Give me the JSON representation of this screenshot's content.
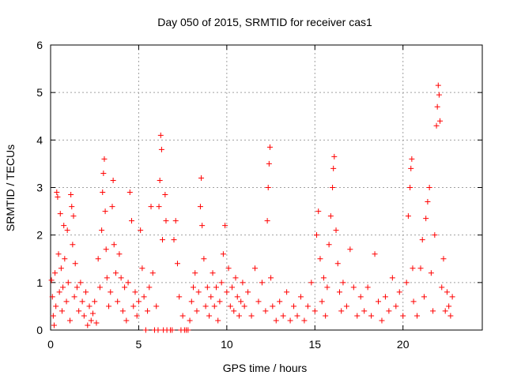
{
  "chart_data": {
    "type": "scatter",
    "title": "Day 050 of 2015, SRMTID for receiver cas1",
    "xlabel": "GPS time / hours",
    "ylabel": "SRMTID / TECUs",
    "xlim": [
      0,
      24.5
    ],
    "ylim": [
      0,
      6
    ],
    "xticks": [
      0,
      5,
      10,
      15,
      20
    ],
    "yticks": [
      0,
      1,
      2,
      3,
      4,
      5,
      6
    ],
    "grid": true,
    "marker": "+",
    "color": "#ff0000",
    "series": [
      {
        "name": "SRMTID",
        "points": [
          [
            0.05,
            1.05
          ],
          [
            0.1,
            0.7
          ],
          [
            0.15,
            0.3
          ],
          [
            0.2,
            0.1
          ],
          [
            0.25,
            1.2
          ],
          [
            0.3,
            0.5
          ],
          [
            0.35,
            2.9
          ],
          [
            0.4,
            2.8
          ],
          [
            0.45,
            1.6
          ],
          [
            0.5,
            0.8
          ],
          [
            0.55,
            2.45
          ],
          [
            0.6,
            1.3
          ],
          [
            0.65,
            0.4
          ],
          [
            0.7,
            0.9
          ],
          [
            0.75,
            2.2
          ],
          [
            0.8,
            1.5
          ],
          [
            0.9,
            0.6
          ],
          [
            0.95,
            2.1
          ],
          [
            1.0,
            1.0
          ],
          [
            1.1,
            0.2
          ],
          [
            1.15,
            2.85
          ],
          [
            1.2,
            2.6
          ],
          [
            1.25,
            1.8
          ],
          [
            1.3,
            2.4
          ],
          [
            1.35,
            0.7
          ],
          [
            1.4,
            1.4
          ],
          [
            1.5,
            0.9
          ],
          [
            1.6,
            0.4
          ],
          [
            1.7,
            1.0
          ],
          [
            1.8,
            0.6
          ],
          [
            1.9,
            0.3
          ],
          [
            2.0,
            0.8
          ],
          [
            2.1,
            0.1
          ],
          [
            2.2,
            0.5
          ],
          [
            2.3,
            0.2
          ],
          [
            2.4,
            0.35
          ],
          [
            2.5,
            0.6
          ],
          [
            2.6,
            0.15
          ],
          [
            2.7,
            1.5
          ],
          [
            2.8,
            0.9
          ],
          [
            2.9,
            2.1
          ],
          [
            2.95,
            2.9
          ],
          [
            3.0,
            3.3
          ],
          [
            3.05,
            3.6
          ],
          [
            3.1,
            2.5
          ],
          [
            3.15,
            1.7
          ],
          [
            3.2,
            1.1
          ],
          [
            3.3,
            0.5
          ],
          [
            3.4,
            0.8
          ],
          [
            3.5,
            2.6
          ],
          [
            3.55,
            3.15
          ],
          [
            3.6,
            1.8
          ],
          [
            3.7,
            1.2
          ],
          [
            3.8,
            0.6
          ],
          [
            3.9,
            1.6
          ],
          [
            4.0,
            1.1
          ],
          [
            4.1,
            0.4
          ],
          [
            4.2,
            0.9
          ],
          [
            4.3,
            0.2
          ],
          [
            4.4,
            1.0
          ],
          [
            4.5,
            2.9
          ],
          [
            4.6,
            2.3
          ],
          [
            4.7,
            0.5
          ],
          [
            4.8,
            0.8
          ],
          [
            4.9,
            0.3
          ],
          [
            5.0,
            0.6
          ],
          [
            5.1,
            2.1
          ],
          [
            5.2,
            1.3
          ],
          [
            5.3,
            0.7
          ],
          [
            5.4,
            0.0
          ],
          [
            5.5,
            0.4
          ],
          [
            5.6,
            0.9
          ],
          [
            5.7,
            2.6
          ],
          [
            5.8,
            1.2
          ],
          [
            5.9,
            0.0
          ],
          [
            6.0,
            0.5
          ],
          [
            6.1,
            0.0
          ],
          [
            6.15,
            2.6
          ],
          [
            6.2,
            3.15
          ],
          [
            6.25,
            4.1
          ],
          [
            6.3,
            3.8
          ],
          [
            6.35,
            1.9
          ],
          [
            6.4,
            0.0
          ],
          [
            6.5,
            2.85
          ],
          [
            6.55,
            2.3
          ],
          [
            6.6,
            0.0
          ],
          [
            6.8,
            0.0
          ],
          [
            6.9,
            0.0
          ],
          [
            7.0,
            1.9
          ],
          [
            7.1,
            2.3
          ],
          [
            7.2,
            1.4
          ],
          [
            7.3,
            0.7
          ],
          [
            7.4,
            0.0
          ],
          [
            7.5,
            0.3
          ],
          [
            7.6,
            0.0
          ],
          [
            7.7,
            0.0
          ],
          [
            7.8,
            0.0
          ],
          [
            7.9,
            0.2
          ],
          [
            8.0,
            0.6
          ],
          [
            8.1,
            0.9
          ],
          [
            8.2,
            1.2
          ],
          [
            8.3,
            0.4
          ],
          [
            8.4,
            0.8
          ],
          [
            8.5,
            2.6
          ],
          [
            8.55,
            3.2
          ],
          [
            8.6,
            2.2
          ],
          [
            8.7,
            1.5
          ],
          [
            8.8,
            0.5
          ],
          [
            8.9,
            0.9
          ],
          [
            9.0,
            0.3
          ],
          [
            9.1,
            0.7
          ],
          [
            9.2,
            1.2
          ],
          [
            9.3,
            0.5
          ],
          [
            9.4,
            0.9
          ],
          [
            9.5,
            0.2
          ],
          [
            9.6,
            0.6
          ],
          [
            9.7,
            1.0
          ],
          [
            9.8,
            1.6
          ],
          [
            9.9,
            2.2
          ],
          [
            10.0,
            0.8
          ],
          [
            10.1,
            1.3
          ],
          [
            10.2,
            0.5
          ],
          [
            10.3,
            0.9
          ],
          [
            10.4,
            0.4
          ],
          [
            10.5,
            1.1
          ],
          [
            10.6,
            0.7
          ],
          [
            10.7,
            0.3
          ],
          [
            10.8,
            0.6
          ],
          [
            10.9,
            1.0
          ],
          [
            11.0,
            0.5
          ],
          [
            11.2,
            0.8
          ],
          [
            11.4,
            0.3
          ],
          [
            11.6,
            1.3
          ],
          [
            11.8,
            0.6
          ],
          [
            12.0,
            1.0
          ],
          [
            12.2,
            0.4
          ],
          [
            12.3,
            2.3
          ],
          [
            12.35,
            3.0
          ],
          [
            12.4,
            3.5
          ],
          [
            12.45,
            3.85
          ],
          [
            12.5,
            1.1
          ],
          [
            12.6,
            0.5
          ],
          [
            12.8,
            0.2
          ],
          [
            13.0,
            0.6
          ],
          [
            13.2,
            0.3
          ],
          [
            13.4,
            0.8
          ],
          [
            13.6,
            0.2
          ],
          [
            13.8,
            0.5
          ],
          [
            14.0,
            0.3
          ],
          [
            14.2,
            0.7
          ],
          [
            14.4,
            0.2
          ],
          [
            14.6,
            0.5
          ],
          [
            14.8,
            1.0
          ],
          [
            15.0,
            0.4
          ],
          [
            15.1,
            2.0
          ],
          [
            15.2,
            2.5
          ],
          [
            15.3,
            1.5
          ],
          [
            15.4,
            0.6
          ],
          [
            15.5,
            1.1
          ],
          [
            15.6,
            0.3
          ],
          [
            15.7,
            0.9
          ],
          [
            15.8,
            1.8
          ],
          [
            15.9,
            2.4
          ],
          [
            16.0,
            3.0
          ],
          [
            16.05,
            3.4
          ],
          [
            16.1,
            3.65
          ],
          [
            16.2,
            2.1
          ],
          [
            16.3,
            1.4
          ],
          [
            16.4,
            0.8
          ],
          [
            16.5,
            0.4
          ],
          [
            16.6,
            1.0
          ],
          [
            16.8,
            0.5
          ],
          [
            17.0,
            1.7
          ],
          [
            17.2,
            0.9
          ],
          [
            17.4,
            0.3
          ],
          [
            17.6,
            0.7
          ],
          [
            17.8,
            0.4
          ],
          [
            18.0,
            0.9
          ],
          [
            18.2,
            0.3
          ],
          [
            18.4,
            1.6
          ],
          [
            18.6,
            0.6
          ],
          [
            18.8,
            0.2
          ],
          [
            19.0,
            0.7
          ],
          [
            19.2,
            0.4
          ],
          [
            19.4,
            1.1
          ],
          [
            19.6,
            0.5
          ],
          [
            19.8,
            0.8
          ],
          [
            20.0,
            0.3
          ],
          [
            20.2,
            1.0
          ],
          [
            20.3,
            2.4
          ],
          [
            20.4,
            3.0
          ],
          [
            20.45,
            3.4
          ],
          [
            20.5,
            3.6
          ],
          [
            20.55,
            1.3
          ],
          [
            20.6,
            0.6
          ],
          [
            20.8,
            0.3
          ],
          [
            21.0,
            1.3
          ],
          [
            21.1,
            1.9
          ],
          [
            21.2,
            0.7
          ],
          [
            21.3,
            2.35
          ],
          [
            21.4,
            2.7
          ],
          [
            21.5,
            3.0
          ],
          [
            21.6,
            1.2
          ],
          [
            21.7,
            0.4
          ],
          [
            21.8,
            2.0
          ],
          [
            21.9,
            4.3
          ],
          [
            21.95,
            4.7
          ],
          [
            22.0,
            5.15
          ],
          [
            22.05,
            4.95
          ],
          [
            22.1,
            4.4
          ],
          [
            22.2,
            0.9
          ],
          [
            22.3,
            1.5
          ],
          [
            22.4,
            0.4
          ],
          [
            22.5,
            0.8
          ],
          [
            22.6,
            0.5
          ],
          [
            22.7,
            0.3
          ],
          [
            22.8,
            0.7
          ]
        ]
      }
    ]
  }
}
